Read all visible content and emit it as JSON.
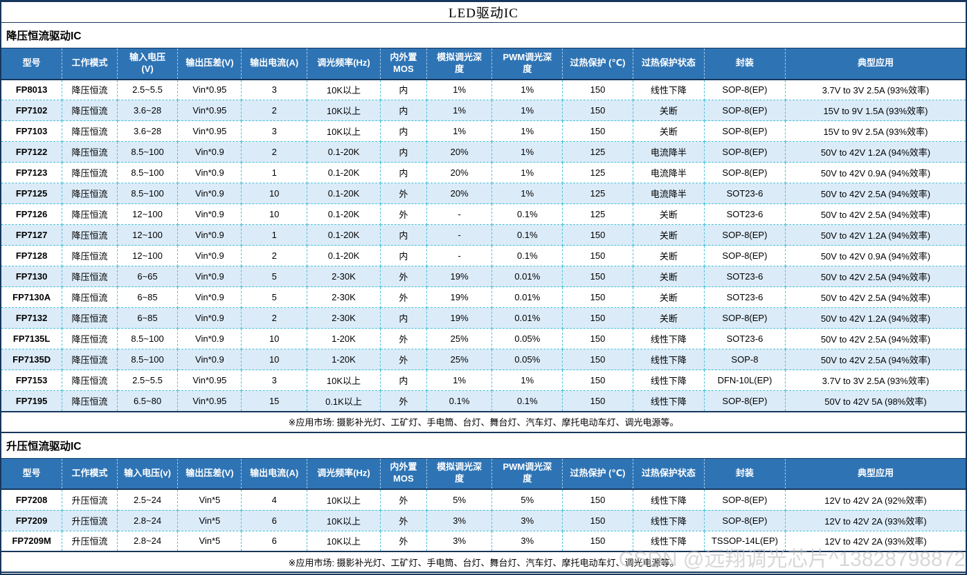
{
  "title": "LED驱动IC",
  "watermark": "CSDN @远翔调光芯片^13828798872",
  "colors": {
    "header_bg": "#2e74b5",
    "alt_row_bg": "#dcebf8",
    "grid_dash": "#44c0d8",
    "frame": "#16365c"
  },
  "sections": [
    {
      "heading": "降压恒流驱动IC",
      "columns": [
        "型号",
        "工作模式",
        "输入电压\n(V)",
        "输出压差(V)",
        "输出电流(A)",
        "调光频率(Hz)",
        "内外置\nMOS",
        "模拟调光深\n度",
        "PWM调光深\n度",
        "过热保护 (℃)",
        "过热保护状态",
        "封装",
        "典型应用"
      ],
      "rows": [
        [
          "FP8013",
          "降压恒流",
          "2.5~5.5",
          "Vin*0.95",
          "3",
          "10K以上",
          "内",
          "1%",
          "1%",
          "150",
          "线性下降",
          "SOP-8(EP)",
          "3.7V to 3V 2.5A (93%效率)"
        ],
        [
          "FP7102",
          "降压恒流",
          "3.6~28",
          "Vin*0.95",
          "2",
          "10K以上",
          "内",
          "1%",
          "1%",
          "150",
          "关断",
          "SOP-8(EP)",
          "15V to 9V 1.5A (93%效率)"
        ],
        [
          "FP7103",
          "降压恒流",
          "3.6~28",
          "Vin*0.95",
          "3",
          "10K以上",
          "内",
          "1%",
          "1%",
          "150",
          "关断",
          "SOP-8(EP)",
          "15V to 9V 2.5A (93%效率)"
        ],
        [
          "FP7122",
          "降压恒流",
          "8.5~100",
          "Vin*0.9",
          "2",
          "0.1-20K",
          "内",
          "20%",
          "1%",
          "125",
          "电流降半",
          "SOP-8(EP)",
          "50V to 42V 1.2A (94%效率)"
        ],
        [
          "FP7123",
          "降压恒流",
          "8.5~100",
          "Vin*0.9",
          "1",
          "0.1-20K",
          "内",
          "20%",
          "1%",
          "125",
          "电流降半",
          "SOP-8(EP)",
          "50V to 42V 0.9A (94%效率)"
        ],
        [
          "FP7125",
          "降压恒流",
          "8.5~100",
          "Vin*0.9",
          "10",
          "0.1-20K",
          "外",
          "20%",
          "1%",
          "125",
          "电流降半",
          "SOT23-6",
          "50V to 42V 2.5A (94%效率)"
        ],
        [
          "FP7126",
          "降压恒流",
          "12~100",
          "Vin*0.9",
          "10",
          "0.1-20K",
          "外",
          "-",
          "0.1%",
          "125",
          "关断",
          "SOT23-6",
          "50V to 42V 2.5A (94%效率)"
        ],
        [
          "FP7127",
          "降压恒流",
          "12~100",
          "Vin*0.9",
          "1",
          "0.1-20K",
          "内",
          "-",
          "0.1%",
          "150",
          "关断",
          "SOP-8(EP)",
          "50V to 42V 1.2A (94%效率)"
        ],
        [
          "FP7128",
          "降压恒流",
          "12~100",
          "Vin*0.9",
          "2",
          "0.1-20K",
          "内",
          "-",
          "0.1%",
          "150",
          "关断",
          "SOP-8(EP)",
          "50V to 42V 0.9A (94%效率)"
        ],
        [
          "FP7130",
          "降压恒流",
          "6~65",
          "Vin*0.9",
          "5",
          "2-30K",
          "外",
          "19%",
          "0.01%",
          "150",
          "关断",
          "SOT23-6",
          "50V to 42V 2.5A (94%效率)"
        ],
        [
          "FP7130A",
          "降压恒流",
          "6~85",
          "Vin*0.9",
          "5",
          "2-30K",
          "外",
          "19%",
          "0.01%",
          "150",
          "关断",
          "SOT23-6",
          "50V to 42V 2.5A (94%效率)"
        ],
        [
          "FP7132",
          "降压恒流",
          "6~85",
          "Vin*0.9",
          "2",
          "2-30K",
          "内",
          "19%",
          "0.01%",
          "150",
          "关断",
          "SOP-8(EP)",
          "50V to 42V 1.2A (94%效率)"
        ],
        [
          "FP7135L",
          "降压恒流",
          "8.5~100",
          "Vin*0.9",
          "10",
          "1-20K",
          "外",
          "25%",
          "0.05%",
          "150",
          "线性下降",
          "SOT23-6",
          "50V to 42V 2.5A (94%效率)"
        ],
        [
          "FP7135D",
          "降压恒流",
          "8.5~100",
          "Vin*0.9",
          "10",
          "1-20K",
          "外",
          "25%",
          "0.05%",
          "150",
          "线性下降",
          "SOP-8",
          "50V to 42V 2.5A (94%效率)"
        ],
        [
          "FP7153",
          "降压恒流",
          "2.5~5.5",
          "Vin*0.95",
          "3",
          "10K以上",
          "内",
          "1%",
          "1%",
          "150",
          "线性下降",
          "DFN-10L(EP)",
          "3.7V to 3V 2.5A (93%效率)"
        ],
        [
          "FP7195",
          "降压恒流",
          "6.5~80",
          "Vin*0.95",
          "15",
          "0.1K以上",
          "外",
          "0.1%",
          "0.1%",
          "150",
          "线性下降",
          "SOP-8(EP)",
          "50V to 42V 5A (98%效率)"
        ]
      ],
      "note": "※应用市场: 摄影补光灯、工矿灯、手电筒、台灯、舞台灯、汽车灯、摩托电动车灯、调光电源等。"
    },
    {
      "heading": "升压恒流驱动IC",
      "columns": [
        "型号",
        "工作模式",
        "输入电压(v)",
        "输出压差(V)",
        "输出电流(A)",
        "调光频率(Hz)",
        "内外置\nMOS",
        "模拟调光深\n度",
        "PWM调光深\n度",
        "过热保护 (℃)",
        "过热保护状态",
        "封装",
        "典型应用"
      ],
      "rows": [
        [
          "FP7208",
          "升压恒流",
          "2.5~24",
          "Vin*5",
          "4",
          "10K以上",
          "外",
          "5%",
          "5%",
          "150",
          "线性下降",
          "SOP-8(EP)",
          "12V to 42V 2A (92%效率)"
        ],
        [
          "FP7209",
          "升压恒流",
          "2.8~24",
          "Vin*5",
          "6",
          "10K以上",
          "外",
          "3%",
          "3%",
          "150",
          "线性下降",
          "SOP-8(EP)",
          "12V to 42V 2A (93%效率)"
        ],
        [
          "FP7209M",
          "升压恒流",
          "2.8~24",
          "Vin*5",
          "6",
          "10K以上",
          "外",
          "3%",
          "3%",
          "150",
          "线性下降",
          "TSSOP-14L(EP)",
          "12V to 42V 2A (93%效率)"
        ]
      ],
      "note": "※应用市场: 摄影补光灯、工矿灯、手电筒、台灯、舞台灯、汽车灯、摩托电动车灯、调光电源等。"
    }
  ]
}
